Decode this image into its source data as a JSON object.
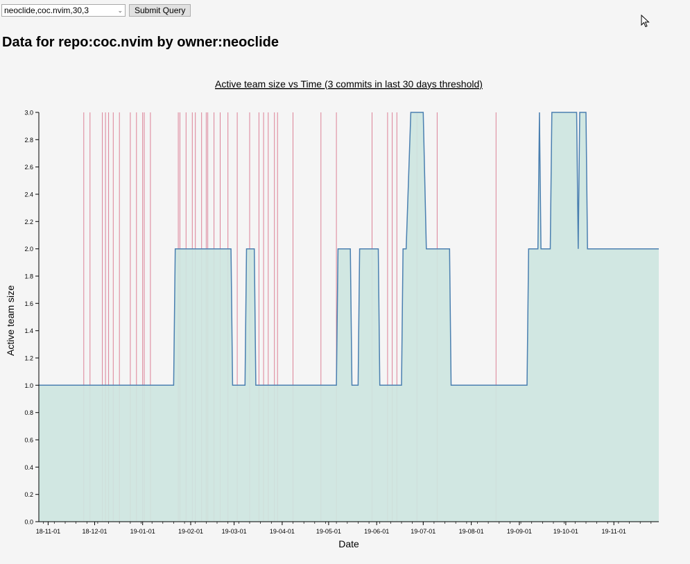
{
  "form": {
    "select_value": "neoclide,coc.nvim,30,3",
    "submit_label": "Submit Query"
  },
  "heading": "Data for repo:coc.nvim by owner:neoclide",
  "colors": {
    "area_fill": "#cde5df",
    "line": "#4a7fb0",
    "event_lines": "#dc8196",
    "axis": "#000000"
  },
  "chart_data": {
    "type": "area",
    "title": "Active team size vs Time (3 commits in last 30 days threshold)",
    "xlabel": "Date",
    "ylabel": "Active team size",
    "xlim": [
      "2018-10-26",
      "2019-11-30"
    ],
    "ylim": [
      0,
      3
    ],
    "y_ticks": [
      "0.0",
      "0.2",
      "0.4",
      "0.6",
      "0.8",
      "1.0",
      "1.2",
      "1.4",
      "1.6",
      "1.8",
      "2.0",
      "2.2",
      "2.4",
      "2.6",
      "2.8",
      "3.0"
    ],
    "x_ticks": [
      {
        "date": "2018-11-01",
        "label": "18-11-01"
      },
      {
        "date": "2018-12-01",
        "label": "18-12-01"
      },
      {
        "date": "2019-01-01",
        "label": "19-01-01"
      },
      {
        "date": "2019-02-01",
        "label": "19-02-01"
      },
      {
        "date": "2019-03-01",
        "label": "19-03-01"
      },
      {
        "date": "2019-04-01",
        "label": "19-04-01"
      },
      {
        "date": "2019-05-01",
        "label": "19-05-01"
      },
      {
        "date": "2019-06-01",
        "label": "19-06-01"
      },
      {
        "date": "2019-07-01",
        "label": "19-07-01"
      },
      {
        "date": "2019-08-01",
        "label": "19-08-01"
      },
      {
        "date": "2019-09-01",
        "label": "19-09-01"
      },
      {
        "date": "2019-10-01",
        "label": "19-10-01"
      },
      {
        "date": "2019-11-01",
        "label": "19-11-01"
      }
    ],
    "series": [
      {
        "points": [
          [
            "2018-10-26",
            1
          ],
          [
            "2019-01-21",
            1
          ],
          [
            "2019-01-22",
            2
          ],
          [
            "2019-02-27",
            2
          ],
          [
            "2019-02-28",
            1
          ],
          [
            "2019-03-08",
            1
          ],
          [
            "2019-03-09",
            2
          ],
          [
            "2019-03-14",
            2
          ],
          [
            "2019-03-15",
            1
          ],
          [
            "2019-05-06",
            1
          ],
          [
            "2019-05-07",
            2
          ],
          [
            "2019-05-15",
            2
          ],
          [
            "2019-05-16",
            1
          ],
          [
            "2019-05-20",
            1
          ],
          [
            "2019-05-21",
            2
          ],
          [
            "2019-06-02",
            2
          ],
          [
            "2019-06-03",
            1
          ],
          [
            "2019-06-17",
            1
          ],
          [
            "2019-06-18",
            2
          ],
          [
            "2019-06-20",
            2
          ],
          [
            "2019-06-23",
            3
          ],
          [
            "2019-07-01",
            3
          ],
          [
            "2019-07-03",
            2
          ],
          [
            "2019-07-18",
            2
          ],
          [
            "2019-07-19",
            1
          ],
          [
            "2019-09-06",
            1
          ],
          [
            "2019-09-07",
            2
          ],
          [
            "2019-09-13",
            2
          ],
          [
            "2019-09-14",
            3
          ],
          [
            "2019-09-15",
            2
          ],
          [
            "2019-09-21",
            2
          ],
          [
            "2019-09-22",
            3
          ],
          [
            "2019-10-08",
            3
          ],
          [
            "2019-10-09",
            2
          ],
          [
            "2019-10-10",
            3
          ],
          [
            "2019-10-14",
            3
          ],
          [
            "2019-10-15",
            2
          ],
          [
            "2019-11-30",
            2
          ]
        ]
      }
    ],
    "events": [
      "2018-11-24",
      "2018-11-28",
      "2018-12-06",
      "2018-12-08",
      "2018-12-10",
      "2018-12-13",
      "2018-12-17",
      "2018-12-24",
      "2018-12-28",
      "2019-01-01",
      "2019-01-02",
      "2019-01-06",
      "2019-01-24",
      "2019-01-25",
      "2019-01-29",
      "2019-02-02",
      "2019-02-04",
      "2019-02-08",
      "2019-02-11",
      "2019-02-12",
      "2019-02-16",
      "2019-02-20",
      "2019-02-25",
      "2019-03-03",
      "2019-03-11",
      "2019-03-17",
      "2019-03-20",
      "2019-03-23",
      "2019-03-27",
      "2019-03-29",
      "2019-04-08",
      "2019-04-26",
      "2019-05-06",
      "2019-05-29",
      "2019-06-08",
      "2019-06-11",
      "2019-06-14",
      "2019-06-27",
      "2019-07-10",
      "2019-08-17"
    ],
    "grid": false,
    "legend": false
  }
}
